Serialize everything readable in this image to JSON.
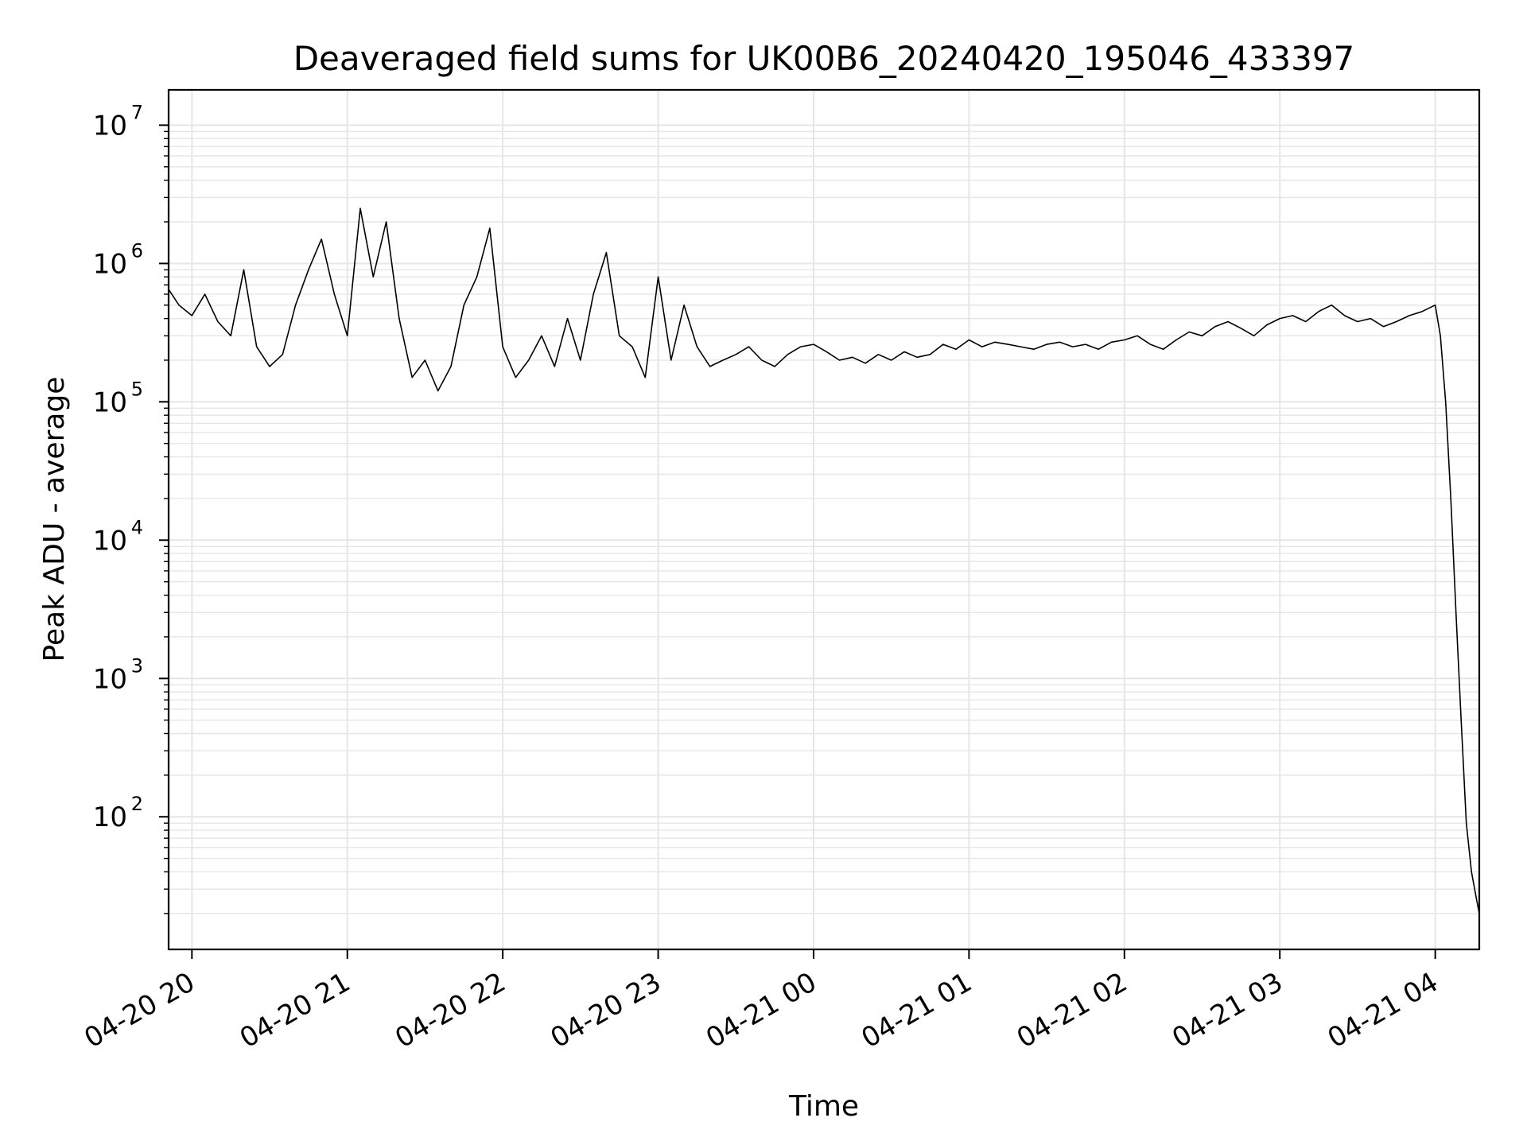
{
  "chart_data": {
    "type": "line",
    "title": "Deaveraged field sums for UK00B6_20240420_195046_433397",
    "xlabel": "Time",
    "ylabel": "Peak ADU - average",
    "yscale": "log",
    "ylim": [
      11,
      18000000
    ],
    "xlim": [
      "2024-04-20 19:51",
      "2024-04-21 04:17"
    ],
    "grid": true,
    "line_color": "#000000",
    "grid_color": "#e6e6e6",
    "x_ticks": [
      {
        "value": "2024-04-20 20:00",
        "label": "04-20 20"
      },
      {
        "value": "2024-04-20 21:00",
        "label": "04-20 21"
      },
      {
        "value": "2024-04-20 22:00",
        "label": "04-20 22"
      },
      {
        "value": "2024-04-20 23:00",
        "label": "04-20 23"
      },
      {
        "value": "2024-04-21 00:00",
        "label": "04-21 00"
      },
      {
        "value": "2024-04-21 01:00",
        "label": "04-21 01"
      },
      {
        "value": "2024-04-21 02:00",
        "label": "04-21 02"
      },
      {
        "value": "2024-04-21 03:00",
        "label": "04-21 03"
      },
      {
        "value": "2024-04-21 04:00",
        "label": "04-21 04"
      }
    ],
    "y_ticks": [
      {
        "value": 100,
        "base": "10",
        "exp": "2"
      },
      {
        "value": 1000,
        "base": "10",
        "exp": "3"
      },
      {
        "value": 10000,
        "base": "10",
        "exp": "4"
      },
      {
        "value": 100000,
        "base": "10",
        "exp": "5"
      },
      {
        "value": 1000000,
        "base": "10",
        "exp": "6"
      },
      {
        "value": 10000000,
        "base": "10",
        "exp": "7"
      }
    ],
    "series": [
      {
        "x": [
          "2024-04-20 19:51",
          "2024-04-20 19:55",
          "2024-04-20 20:00",
          "2024-04-20 20:05",
          "2024-04-20 20:10",
          "2024-04-20 20:15",
          "2024-04-20 20:20",
          "2024-04-20 20:25",
          "2024-04-20 20:30",
          "2024-04-20 20:35",
          "2024-04-20 20:40",
          "2024-04-20 20:45",
          "2024-04-20 20:50",
          "2024-04-20 20:55",
          "2024-04-20 21:00",
          "2024-04-20 21:05",
          "2024-04-20 21:10",
          "2024-04-20 21:15",
          "2024-04-20 21:20",
          "2024-04-20 21:25",
          "2024-04-20 21:30",
          "2024-04-20 21:35",
          "2024-04-20 21:40",
          "2024-04-20 21:45",
          "2024-04-20 21:50",
          "2024-04-20 21:55",
          "2024-04-20 22:00",
          "2024-04-20 22:05",
          "2024-04-20 22:10",
          "2024-04-20 22:15",
          "2024-04-20 22:20",
          "2024-04-20 22:25",
          "2024-04-20 22:30",
          "2024-04-20 22:35",
          "2024-04-20 22:40",
          "2024-04-20 22:45",
          "2024-04-20 22:50",
          "2024-04-20 22:55",
          "2024-04-20 23:00",
          "2024-04-20 23:05",
          "2024-04-20 23:10",
          "2024-04-20 23:15",
          "2024-04-20 23:20",
          "2024-04-20 23:25",
          "2024-04-20 23:30",
          "2024-04-20 23:35",
          "2024-04-20 23:40",
          "2024-04-20 23:45",
          "2024-04-20 23:50",
          "2024-04-20 23:55",
          "2024-04-21 00:00",
          "2024-04-21 00:05",
          "2024-04-21 00:10",
          "2024-04-21 00:15",
          "2024-04-21 00:20",
          "2024-04-21 00:25",
          "2024-04-21 00:30",
          "2024-04-21 00:35",
          "2024-04-21 00:40",
          "2024-04-21 00:45",
          "2024-04-21 00:50",
          "2024-04-21 00:55",
          "2024-04-21 01:00",
          "2024-04-21 01:05",
          "2024-04-21 01:10",
          "2024-04-21 01:15",
          "2024-04-21 01:20",
          "2024-04-21 01:25",
          "2024-04-21 01:30",
          "2024-04-21 01:35",
          "2024-04-21 01:40",
          "2024-04-21 01:45",
          "2024-04-21 01:50",
          "2024-04-21 01:55",
          "2024-04-21 02:00",
          "2024-04-21 02:05",
          "2024-04-21 02:10",
          "2024-04-21 02:15",
          "2024-04-21 02:20",
          "2024-04-21 02:25",
          "2024-04-21 02:30",
          "2024-04-21 02:35",
          "2024-04-21 02:40",
          "2024-04-21 02:45",
          "2024-04-21 02:50",
          "2024-04-21 02:55",
          "2024-04-21 03:00",
          "2024-04-21 03:05",
          "2024-04-21 03:10",
          "2024-04-21 03:15",
          "2024-04-21 03:20",
          "2024-04-21 03:25",
          "2024-04-21 03:30",
          "2024-04-21 03:35",
          "2024-04-21 03:40",
          "2024-04-21 03:45",
          "2024-04-21 03:50",
          "2024-04-21 03:55",
          "2024-04-21 04:00",
          "2024-04-21 04:02",
          "2024-04-21 04:04",
          "2024-04-21 04:06",
          "2024-04-21 04:08",
          "2024-04-21 04:10",
          "2024-04-21 04:12",
          "2024-04-21 04:14",
          "2024-04-21 04:16",
          "2024-04-21 04:17"
        ],
        "y": [
          650000,
          500000,
          420000,
          600000,
          380000,
          300000,
          900000,
          250000,
          180000,
          220000,
          500000,
          900000,
          1500000,
          600000,
          300000,
          2500000,
          800000,
          2000000,
          400000,
          150000,
          200000,
          120000,
          180000,
          500000,
          800000,
          1800000,
          250000,
          150000,
          200000,
          300000,
          180000,
          400000,
          200000,
          600000,
          1200000,
          300000,
          250000,
          150000,
          800000,
          200000,
          500000,
          250000,
          180000,
          200000,
          220000,
          250000,
          200000,
          180000,
          220000,
          250000,
          260000,
          230000,
          200000,
          210000,
          190000,
          220000,
          200000,
          230000,
          210000,
          220000,
          260000,
          240000,
          280000,
          250000,
          270000,
          260000,
          250000,
          240000,
          260000,
          270000,
          250000,
          260000,
          240000,
          270000,
          280000,
          300000,
          260000,
          240000,
          280000,
          320000,
          300000,
          350000,
          380000,
          340000,
          300000,
          360000,
          400000,
          420000,
          380000,
          450000,
          500000,
          420000,
          380000,
          400000,
          350000,
          380000,
          420000,
          450000,
          500000,
          300000,
          100000,
          20000,
          3000,
          500,
          90,
          40,
          25,
          20
        ]
      }
    ]
  }
}
